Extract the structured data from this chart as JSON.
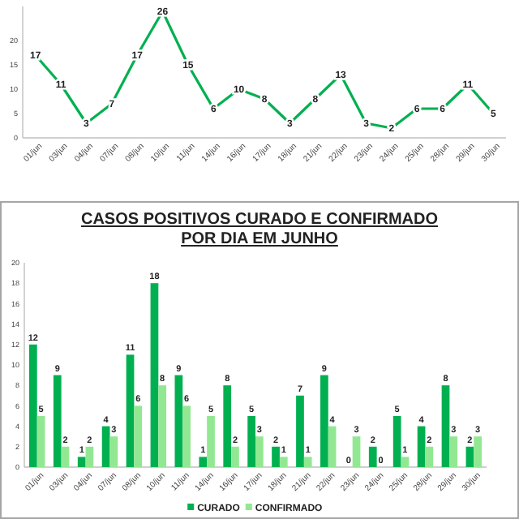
{
  "chart_data": [
    {
      "type": "line",
      "categories": [
        "01/jun",
        "03/jun",
        "04/jun",
        "07/jun",
        "08/jun",
        "10/jun",
        "11/jun",
        "14/jun",
        "16/jun",
        "17/jun",
        "18/jun",
        "21/jun",
        "22/jun",
        "23/jun",
        "24/jun",
        "25/jun",
        "28/jun",
        "29/jun",
        "30/jun"
      ],
      "series": [
        {
          "color": "#00b050",
          "values": [
            17,
            11,
            3,
            7,
            17,
            26,
            15,
            6,
            10,
            8,
            3,
            8,
            13,
            3,
            2,
            6,
            6,
            11,
            5
          ]
        }
      ],
      "ylim": [
        0,
        27
      ],
      "yticks": [
        0,
        5,
        10,
        15,
        20
      ],
      "data_labels": true,
      "marker": "none",
      "line_style": "solid",
      "grid": false,
      "legend": false
    },
    {
      "type": "bar",
      "title": "CASOS POSITIVOS CURADO E CONFIRMADO POR DIA EM JUNHO",
      "categories": [
        "01/jun",
        "03/jun",
        "04/jun",
        "07/jun",
        "08/jun",
        "10/jun",
        "11/jun",
        "14/jun",
        "16/jun",
        "17/jun",
        "18/jun",
        "21/jun",
        "22/jun",
        "23/jun",
        "24/jun",
        "25/jun",
        "28/jun",
        "29/jun",
        "30/jun"
      ],
      "series": [
        {
          "name": "CURADO",
          "color": "#00b050",
          "values": [
            12,
            9,
            1,
            4,
            11,
            18,
            9,
            1,
            8,
            5,
            2,
            7,
            9,
            0,
            2,
            5,
            4,
            8,
            2
          ]
        },
        {
          "name": "CONFIRMADO",
          "color": "#92e892",
          "values": [
            5,
            2,
            2,
            3,
            6,
            8,
            6,
            5,
            2,
            3,
            1,
            1,
            4,
            3,
            0,
            1,
            2,
            3,
            3
          ]
        }
      ],
      "ylim": [
        0,
        20
      ],
      "yticks": [
        0,
        2,
        4,
        6,
        8,
        10,
        12,
        14,
        16,
        18,
        20
      ],
      "data_labels": true,
      "grid": false,
      "legend": "bottom"
    }
  ]
}
